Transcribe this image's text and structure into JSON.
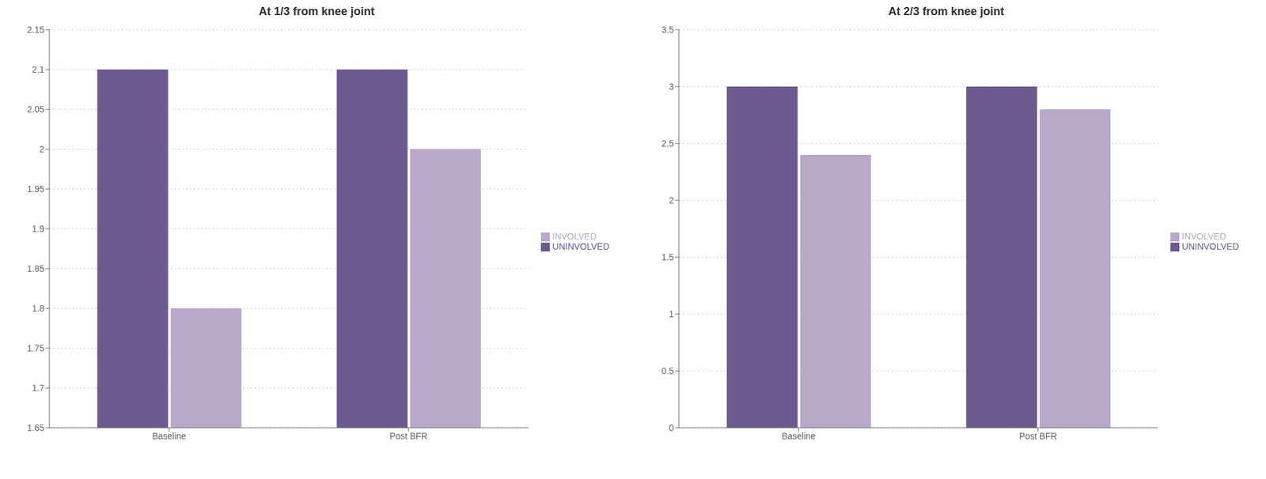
{
  "chart_data": [
    {
      "type": "bar",
      "title": "At 1/3 from knee joint",
      "categories": [
        "Baseline",
        "Post BFR"
      ],
      "series": [
        {
          "name": "UNINVOLVED",
          "color": "#6B5B8E",
          "values": [
            2.1,
            2.1
          ]
        },
        {
          "name": "INVOLVED",
          "color": "#B8A9C9",
          "values": [
            1.8,
            2.0
          ]
        }
      ],
      "ylim": [
        1.65,
        2.15
      ],
      "yticks": [
        1.65,
        1.7,
        1.75,
        1.8,
        1.85,
        1.9,
        1.95,
        2,
        2.05,
        2.1,
        2.15
      ],
      "grid": true,
      "legend": "right"
    },
    {
      "type": "bar",
      "title": "At 2/3 from knee joint",
      "categories": [
        "Baseline",
        "Post BFR"
      ],
      "series": [
        {
          "name": "UNINVOLVED",
          "color": "#6B5B8E",
          "values": [
            3.0,
            3.0
          ]
        },
        {
          "name": "INVOLVED",
          "color": "#B8A9C9",
          "values": [
            2.4,
            2.8
          ]
        }
      ],
      "ylim": [
        0,
        3.5
      ],
      "yticks": [
        0,
        0.5,
        1,
        1.5,
        2,
        2.5,
        3,
        3.5
      ],
      "grid": true,
      "legend": "right"
    }
  ]
}
